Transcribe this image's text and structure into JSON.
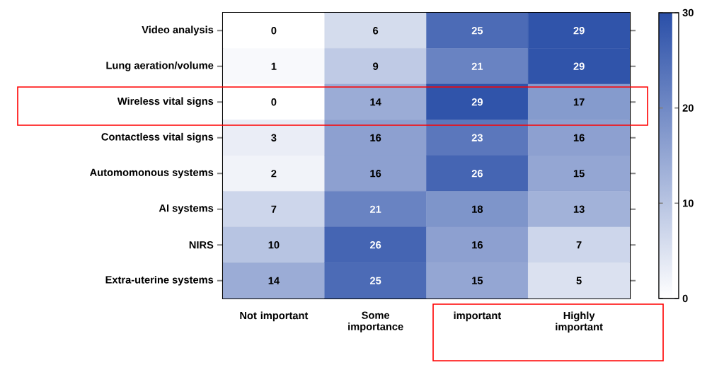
{
  "chart_data": {
    "type": "heatmap",
    "categories": [
      "Not important",
      "Some importance",
      "important",
      "Highly important"
    ],
    "y_categories": [
      "Video analysis",
      "Lung aeration/volume",
      "Wireless vital signs",
      "Contactless vital signs",
      "Automomonous systems",
      "AI systems",
      "NIRS",
      "Extra-uterine systems"
    ],
    "cells": [
      [
        0,
        6,
        25,
        29
      ],
      [
        1,
        9,
        21,
        29
      ],
      [
        0,
        14,
        29,
        17
      ],
      [
        3,
        16,
        23,
        16
      ],
      [
        2,
        16,
        26,
        15
      ],
      [
        7,
        21,
        18,
        13
      ],
      [
        10,
        26,
        16,
        7
      ],
      [
        14,
        25,
        15,
        5
      ]
    ],
    "colors": [
      "#ffffff",
      "#2a4fa8"
    ],
    "clim": [
      0,
      30
    ],
    "cticks": [
      0,
      10,
      20,
      30
    ],
    "data_labels": true
  }
}
